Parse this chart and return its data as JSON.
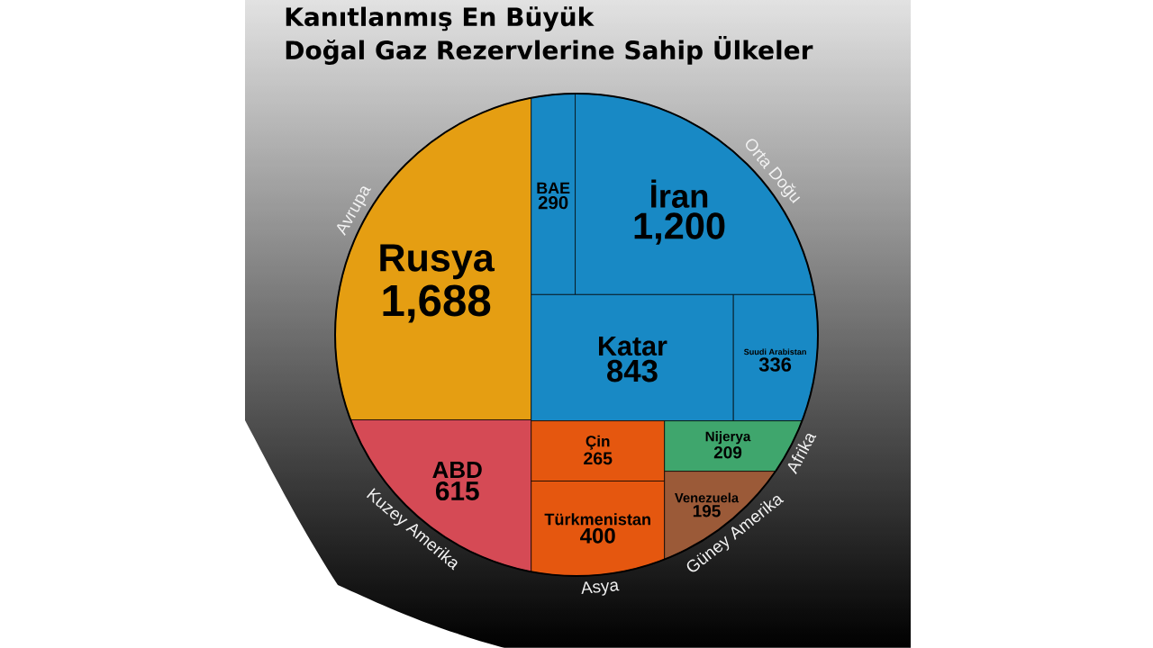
{
  "chart_data": {
    "type": "other",
    "title": "Kanıtlanmış En Büyük Doğal Gaz Rezervlerine Sahip Ülkeler",
    "categories": [
      "Rusya",
      "ABD",
      "BAE",
      "İran",
      "Katar",
      "Suudi Arabistan",
      "Çin",
      "Türkmenistan",
      "Nijerya",
      "Venezuela"
    ],
    "series": [
      {
        "name": "Avrupa",
        "color": "#e59e12",
        "values": [
          1688,
          null,
          null,
          null,
          null,
          null,
          null,
          null,
          null,
          null
        ],
        "value_labels": [
          "1,688",
          null,
          null,
          null,
          null,
          null,
          null,
          null,
          null,
          null
        ]
      },
      {
        "name": "Kuzey Amerika",
        "color": "#d54a55",
        "values": [
          null,
          615,
          null,
          null,
          null,
          null,
          null,
          null,
          null,
          null
        ],
        "value_labels": [
          null,
          "615",
          null,
          null,
          null,
          null,
          null,
          null,
          null,
          null
        ]
      },
      {
        "name": "Orta Doğu",
        "color": "#1889c5",
        "values": [
          null,
          null,
          290,
          1200,
          843,
          336,
          null,
          null,
          null,
          null
        ],
        "value_labels": [
          null,
          null,
          "290",
          "1,200",
          "843",
          "336",
          null,
          null,
          null,
          null
        ]
      },
      {
        "name": "Asya",
        "color": "#e5570f",
        "values": [
          null,
          null,
          null,
          null,
          null,
          null,
          265,
          400,
          null,
          null
        ],
        "value_labels": [
          null,
          null,
          null,
          null,
          null,
          null,
          "265",
          "400",
          null,
          null
        ]
      },
      {
        "name": "Afrika",
        "color": "#3fa66d",
        "values": [
          null,
          null,
          null,
          null,
          null,
          null,
          null,
          null,
          209,
          null
        ],
        "value_labels": [
          null,
          null,
          null,
          null,
          null,
          null,
          null,
          null,
          "209",
          null
        ]
      },
      {
        "name": "Güney Amerika",
        "color": "#9b5a38",
        "values": [
          null,
          null,
          null,
          null,
          null,
          null,
          null,
          null,
          null,
          195
        ],
        "value_labels": [
          null,
          null,
          null,
          null,
          null,
          null,
          null,
          null,
          null,
          "195"
        ]
      }
    ]
  }
}
